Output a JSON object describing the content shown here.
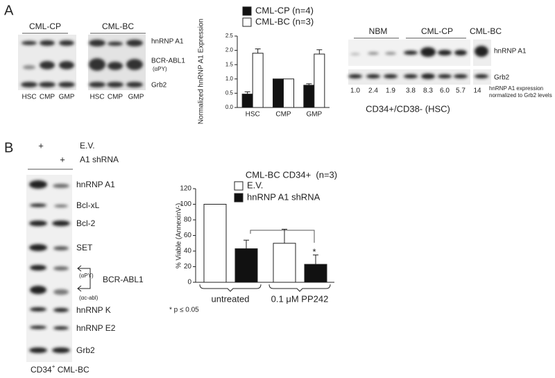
{
  "panel_a": {
    "label": "A",
    "blot_left": {
      "groups": [
        "CML-CP",
        "CML-BC"
      ],
      "lanes": [
        "HSC",
        "CMP",
        "GMP",
        "HSC",
        "CMP",
        "GMP"
      ],
      "rows": [
        "hnRNP A1",
        "BCR-ABL1",
        "(αPY)",
        "Grb2"
      ]
    },
    "blot_right": {
      "groups": [
        "NBM",
        "CML-CP",
        "CML-BC"
      ],
      "rows": [
        "hnRNP A1",
        "Grb2"
      ],
      "quantification": [
        "1.0",
        "2.4",
        "1.9",
        "3.8",
        "8.3",
        "6.0",
        "5.7",
        "14"
      ],
      "note": [
        "hnRNP A1 expression",
        "normalized to Grb2 levels"
      ],
      "caption": "CD34+/CD38- (HSC)"
    }
  },
  "panel_b": {
    "label": "B",
    "conditions": [
      {
        "mark": "+",
        "name": "E.V."
      },
      {
        "mark": "+",
        "name": "A1 shRNA"
      }
    ],
    "rows": [
      "hnRNP A1",
      "Bcl-xL",
      "Bcl-2",
      "SET",
      "(αPY)",
      "BCR-ABL1",
      "(αc-abl)",
      "hnRNP K",
      "hnRNP E2",
      "Grb2"
    ],
    "caption": {
      "main": "CD34",
      "sup": "+",
      "rest": " CML-BC"
    }
  },
  "chart_data": [
    {
      "type": "bar",
      "ylabel": "Normalized hnRNP A1 Expression",
      "categories": [
        "HSC",
        "CMP",
        "GMP"
      ],
      "series": [
        {
          "name": "CML-CP (n=4)",
          "color": "#111111",
          "values": [
            0.47,
            1.0,
            0.78
          ],
          "errors": [
            0.08,
            null,
            0.05
          ]
        },
        {
          "name": "CML-BC (n=3)",
          "color": "#ffffff",
          "values": [
            1.9,
            1.0,
            1.87
          ],
          "errors": [
            0.15,
            null,
            0.15
          ]
        }
      ],
      "ylim": [
        0,
        2.5
      ],
      "yticks": [
        {
          "value": 0,
          "label": "0.0"
        },
        0.5,
        {
          "value": 1,
          "label": "1.0"
        },
        1.5,
        {
          "value": 2,
          "label": "2.0"
        },
        2.5
      ]
    },
    {
      "type": "bar",
      "title": "CML-BC CD34+  (n=3)",
      "ylabel": "% Viable (AnnexinV-)",
      "categories": [
        "untreated",
        "0.1 μM PP242"
      ],
      "series": [
        {
          "name": "E.V.",
          "color": "#ffffff",
          "values": [
            100,
            50
          ],
          "errors": [
            null,
            18
          ]
        },
        {
          "name": "hnRNP A1 shRNA",
          "color": "#111111",
          "values": [
            43,
            23
          ],
          "errors": [
            11,
            12
          ]
        }
      ],
      "ylim": [
        0,
        120
      ],
      "yticks": [
        0,
        20,
        40,
        60,
        80,
        100,
        120
      ],
      "annotations": [
        "*"
      ],
      "footnote": "* p ≤ 0.05"
    }
  ]
}
